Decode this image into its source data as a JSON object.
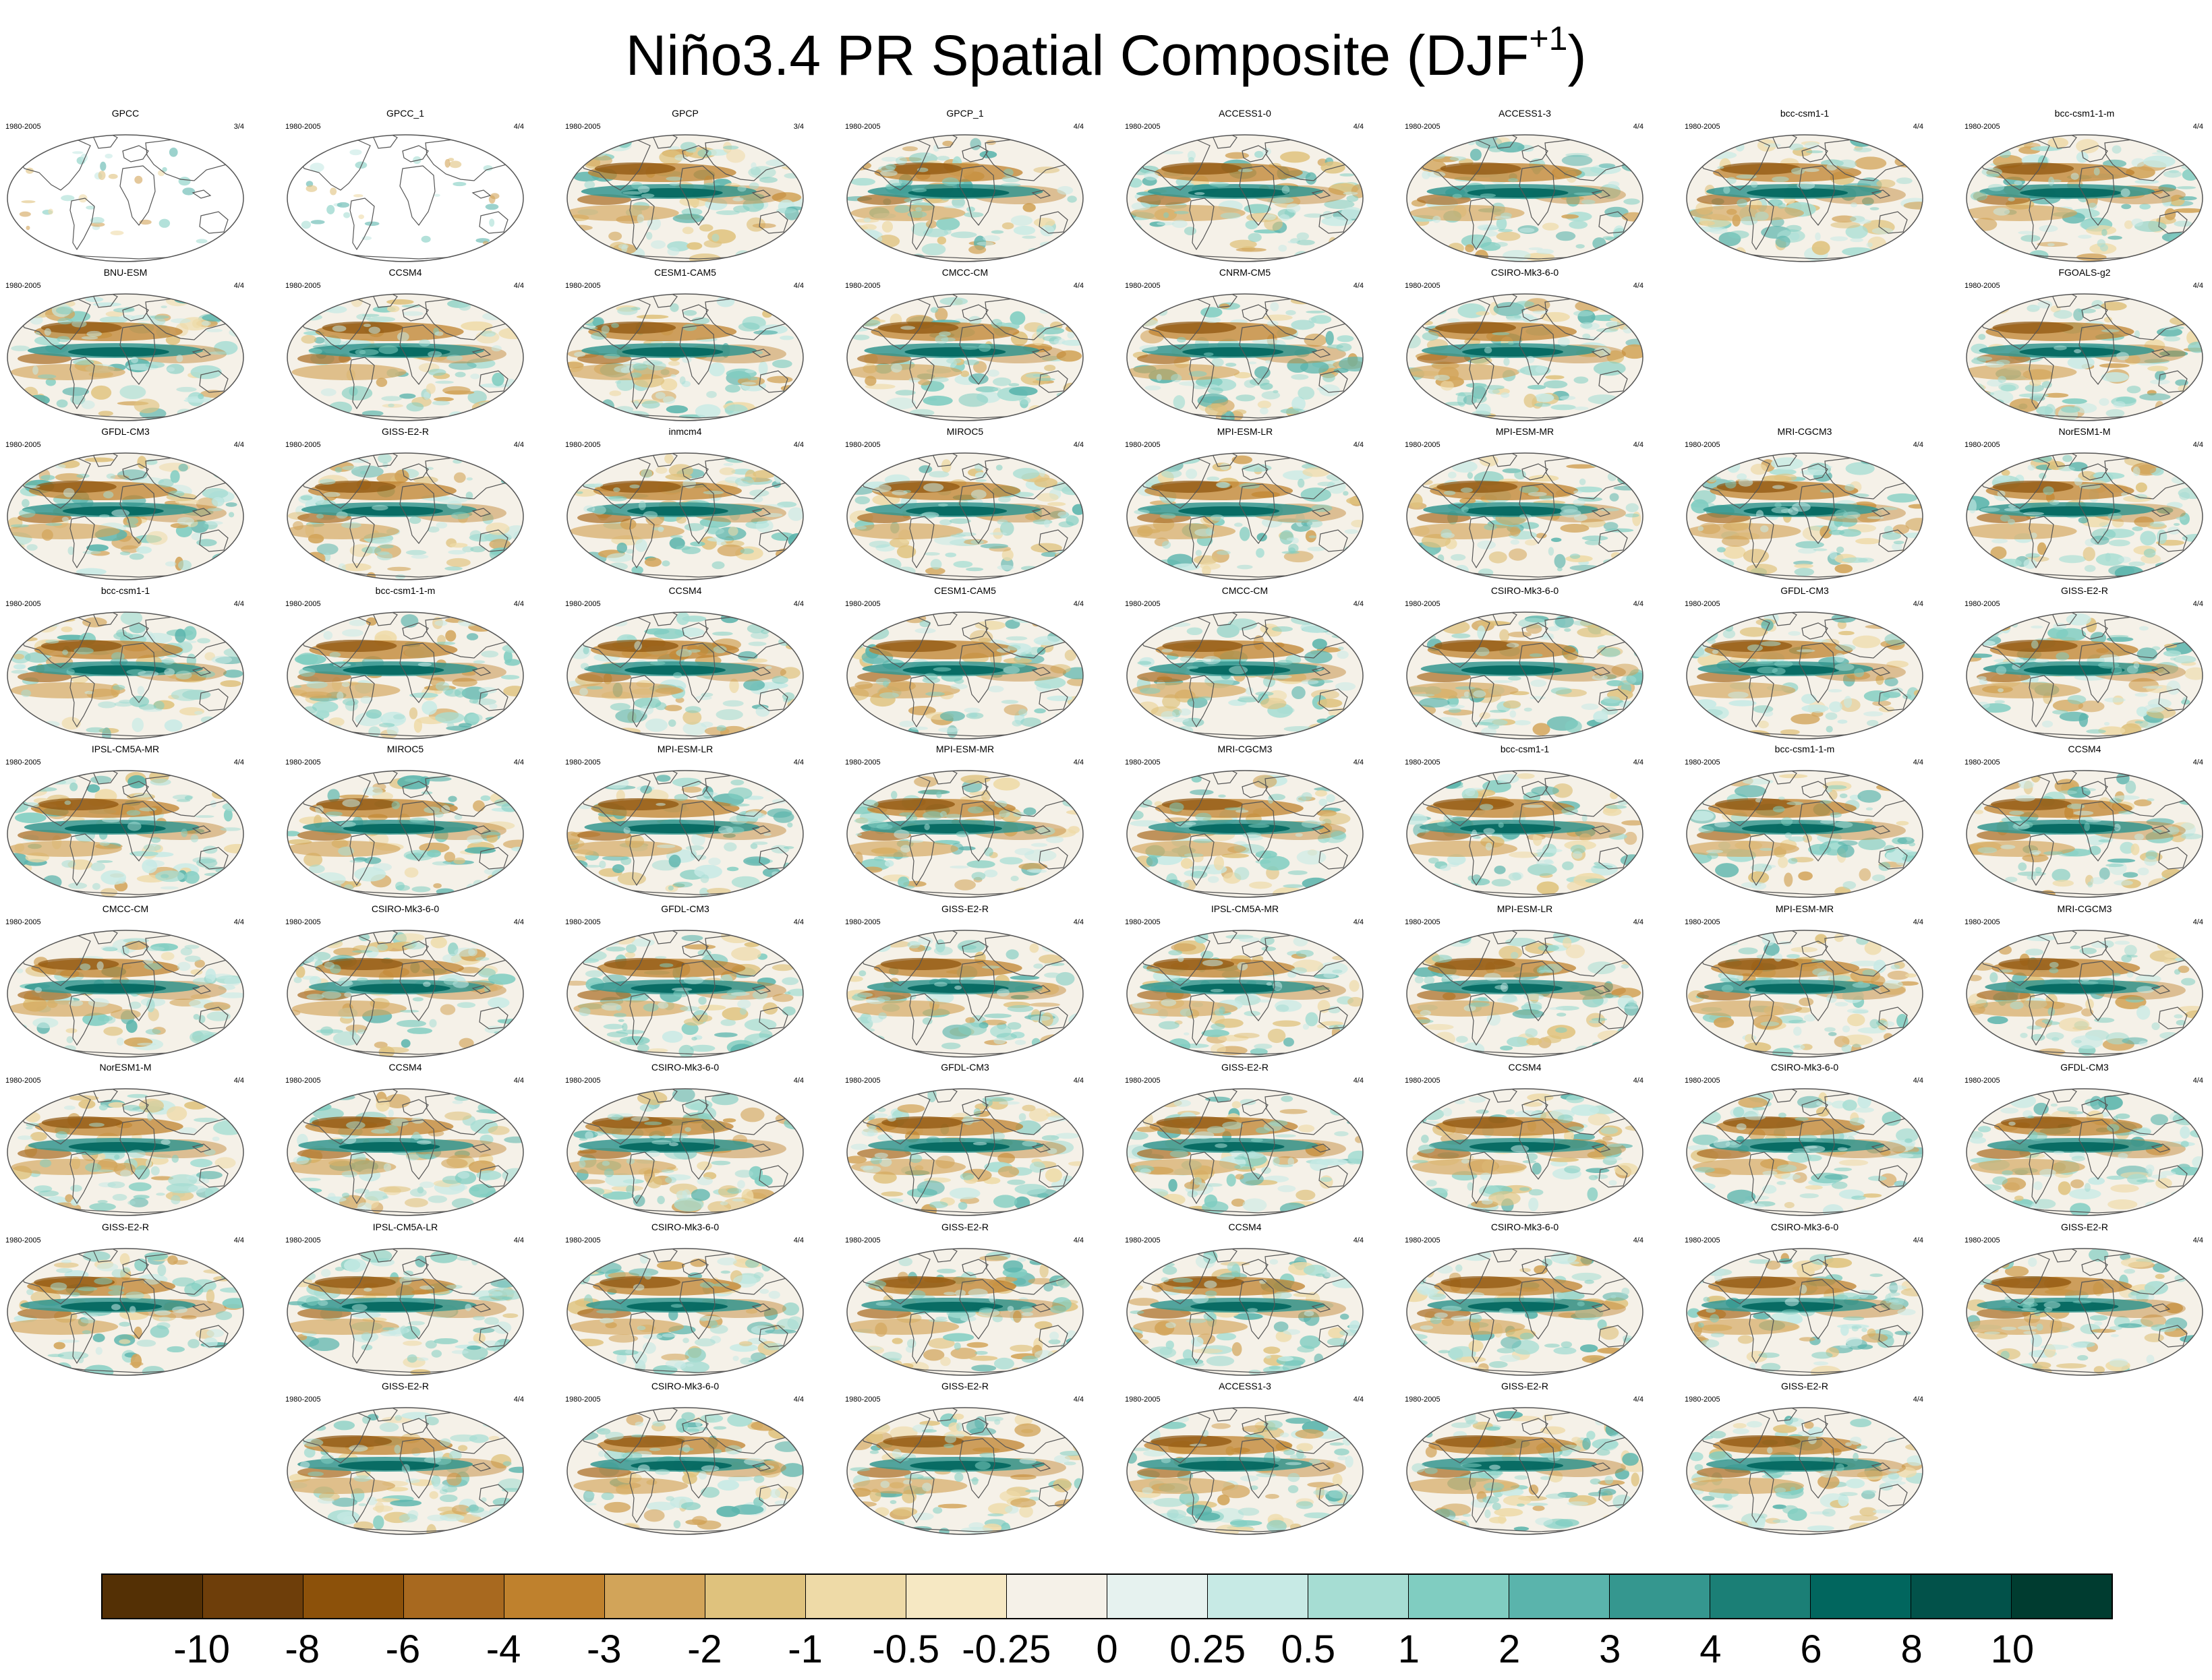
{
  "title": "Niño3.4 PR Spatial Composite (DJF",
  "title_superscript": "+1",
  "title_suffix": ")",
  "years_label": "1980-2005",
  "panels": [
    {
      "row": 0,
      "col": 0,
      "name": "GPCC",
      "count": "3/4",
      "land_only": true
    },
    {
      "row": 0,
      "col": 1,
      "name": "GPCC_1",
      "count": "4/4",
      "land_only": true
    },
    {
      "row": 0,
      "col": 2,
      "name": "GPCP",
      "count": "3/4"
    },
    {
      "row": 0,
      "col": 3,
      "name": "GPCP_1",
      "count": "4/4"
    },
    {
      "row": 0,
      "col": 4,
      "name": "ACCESS1-0",
      "count": "4/4"
    },
    {
      "row": 0,
      "col": 5,
      "name": "ACCESS1-3",
      "count": "4/4"
    },
    {
      "row": 0,
      "col": 6,
      "name": "bcc-csm1-1",
      "count": "4/4"
    },
    {
      "row": 0,
      "col": 7,
      "name": "bcc-csm1-1-m",
      "count": "4/4"
    },
    {
      "row": 1,
      "col": 0,
      "name": "BNU-ESM",
      "count": "4/4"
    },
    {
      "row": 1,
      "col": 1,
      "name": "CCSM4",
      "count": "4/4"
    },
    {
      "row": 1,
      "col": 2,
      "name": "CESM1-CAM5",
      "count": "4/4"
    },
    {
      "row": 1,
      "col": 3,
      "name": "CMCC-CM",
      "count": "4/4"
    },
    {
      "row": 1,
      "col": 4,
      "name": "CNRM-CM5",
      "count": "4/4"
    },
    {
      "row": 1,
      "col": 5,
      "name": "CSIRO-Mk3-6-0",
      "count": "4/4"
    },
    {
      "row": 1,
      "col": 7,
      "name": "FGOALS-g2",
      "count": "4/4"
    },
    {
      "row": 2,
      "col": 0,
      "name": "GFDL-CM3",
      "count": "4/4"
    },
    {
      "row": 2,
      "col": 1,
      "name": "GISS-E2-R",
      "count": "4/4"
    },
    {
      "row": 2,
      "col": 2,
      "name": "inmcm4",
      "count": "4/4"
    },
    {
      "row": 2,
      "col": 3,
      "name": "MIROC5",
      "count": "4/4"
    },
    {
      "row": 2,
      "col": 4,
      "name": "MPI-ESM-LR",
      "count": "4/4"
    },
    {
      "row": 2,
      "col": 5,
      "name": "MPI-ESM-MR",
      "count": "4/4"
    },
    {
      "row": 2,
      "col": 6,
      "name": "MRI-CGCM3",
      "count": "4/4"
    },
    {
      "row": 2,
      "col": 7,
      "name": "NorESM1-M",
      "count": "4/4"
    },
    {
      "row": 3,
      "col": 0,
      "name": "bcc-csm1-1",
      "count": "4/4"
    },
    {
      "row": 3,
      "col": 1,
      "name": "bcc-csm1-1-m",
      "count": "4/4"
    },
    {
      "row": 3,
      "col": 2,
      "name": "CCSM4",
      "count": "4/4"
    },
    {
      "row": 3,
      "col": 3,
      "name": "CESM1-CAM5",
      "count": "4/4"
    },
    {
      "row": 3,
      "col": 4,
      "name": "CMCC-CM",
      "count": "4/4"
    },
    {
      "row": 3,
      "col": 5,
      "name": "CSIRO-Mk3-6-0",
      "count": "4/4"
    },
    {
      "row": 3,
      "col": 6,
      "name": "GFDL-CM3",
      "count": "4/4"
    },
    {
      "row": 3,
      "col": 7,
      "name": "GISS-E2-R",
      "count": "4/4"
    },
    {
      "row": 4,
      "col": 0,
      "name": "IPSL-CM5A-MR",
      "count": "4/4"
    },
    {
      "row": 4,
      "col": 1,
      "name": "MIROC5",
      "count": "4/4"
    },
    {
      "row": 4,
      "col": 2,
      "name": "MPI-ESM-LR",
      "count": "4/4"
    },
    {
      "row": 4,
      "col": 3,
      "name": "MPI-ESM-MR",
      "count": "4/4"
    },
    {
      "row": 4,
      "col": 4,
      "name": "MRI-CGCM3",
      "count": "4/4"
    },
    {
      "row": 4,
      "col": 5,
      "name": "bcc-csm1-1",
      "count": "4/4"
    },
    {
      "row": 4,
      "col": 6,
      "name": "bcc-csm1-1-m",
      "count": "4/4"
    },
    {
      "row": 4,
      "col": 7,
      "name": "CCSM4",
      "count": "4/4"
    },
    {
      "row": 5,
      "col": 0,
      "name": "CMCC-CM",
      "count": "4/4"
    },
    {
      "row": 5,
      "col": 1,
      "name": "CSIRO-Mk3-6-0",
      "count": "4/4"
    },
    {
      "row": 5,
      "col": 2,
      "name": "GFDL-CM3",
      "count": "4/4"
    },
    {
      "row": 5,
      "col": 3,
      "name": "GISS-E2-R",
      "count": "4/4"
    },
    {
      "row": 5,
      "col": 4,
      "name": "IPSL-CM5A-MR",
      "count": "4/4"
    },
    {
      "row": 5,
      "col": 5,
      "name": "MPI-ESM-LR",
      "count": "4/4"
    },
    {
      "row": 5,
      "col": 6,
      "name": "MPI-ESM-MR",
      "count": "4/4"
    },
    {
      "row": 5,
      "col": 7,
      "name": "MRI-CGCM3",
      "count": "4/4"
    },
    {
      "row": 6,
      "col": 0,
      "name": "NorESM1-M",
      "count": "4/4"
    },
    {
      "row": 6,
      "col": 1,
      "name": "CCSM4",
      "count": "4/4"
    },
    {
      "row": 6,
      "col": 2,
      "name": "CSIRO-Mk3-6-0",
      "count": "4/4"
    },
    {
      "row": 6,
      "col": 3,
      "name": "GFDL-CM3",
      "count": "4/4"
    },
    {
      "row": 6,
      "col": 4,
      "name": "GISS-E2-R",
      "count": "4/4"
    },
    {
      "row": 6,
      "col": 5,
      "name": "CCSM4",
      "count": "4/4"
    },
    {
      "row": 6,
      "col": 6,
      "name": "CSIRO-Mk3-6-0",
      "count": "4/4"
    },
    {
      "row": 6,
      "col": 7,
      "name": "GFDL-CM3",
      "count": "4/4"
    },
    {
      "row": 7,
      "col": 0,
      "name": "GISS-E2-R",
      "count": "4/4"
    },
    {
      "row": 7,
      "col": 1,
      "name": "IPSL-CM5A-LR",
      "count": "4/4"
    },
    {
      "row": 7,
      "col": 2,
      "name": "CSIRO-Mk3-6-0",
      "count": "4/4"
    },
    {
      "row": 7,
      "col": 3,
      "name": "GISS-E2-R",
      "count": "4/4"
    },
    {
      "row": 7,
      "col": 4,
      "name": "CCSM4",
      "count": "4/4"
    },
    {
      "row": 7,
      "col": 5,
      "name": "CSIRO-Mk3-6-0",
      "count": "4/4"
    },
    {
      "row": 7,
      "col": 6,
      "name": "CSIRO-Mk3-6-0",
      "count": "4/4"
    },
    {
      "row": 7,
      "col": 7,
      "name": "GISS-E2-R",
      "count": "4/4"
    },
    {
      "row": 8,
      "col": 1,
      "name": "GISS-E2-R",
      "count": "4/4"
    },
    {
      "row": 8,
      "col": 2,
      "name": "CSIRO-Mk3-6-0",
      "count": "4/4"
    },
    {
      "row": 8,
      "col": 3,
      "name": "GISS-E2-R",
      "count": "4/4"
    },
    {
      "row": 8,
      "col": 4,
      "name": "ACCESS1-3",
      "count": "4/4"
    },
    {
      "row": 8,
      "col": 5,
      "name": "GISS-E2-R",
      "count": "4/4"
    },
    {
      "row": 8,
      "col": 6,
      "name": "GISS-E2-R",
      "count": "4/4"
    }
  ],
  "colorbar": {
    "colors": [
      "#543005",
      "#6e3e0a",
      "#8c510a",
      "#a8691f",
      "#bf812d",
      "#d2a459",
      "#dfc27d",
      "#eedaa7",
      "#f6e8c3",
      "#f5f1e8",
      "#e6f2ef",
      "#c7eae5",
      "#a6ddd3",
      "#80cdc1",
      "#5ab4ac",
      "#35978f",
      "#1b7f76",
      "#01665e",
      "#02524a",
      "#003c30"
    ],
    "labels": [
      "-10",
      "-8",
      "-6",
      "-4",
      "-3",
      "-2",
      "-1",
      "-0.5",
      "-0.25",
      "0",
      "0.25",
      "0.5",
      "1",
      "2",
      "3",
      "4",
      "6",
      "8",
      "10"
    ]
  }
}
